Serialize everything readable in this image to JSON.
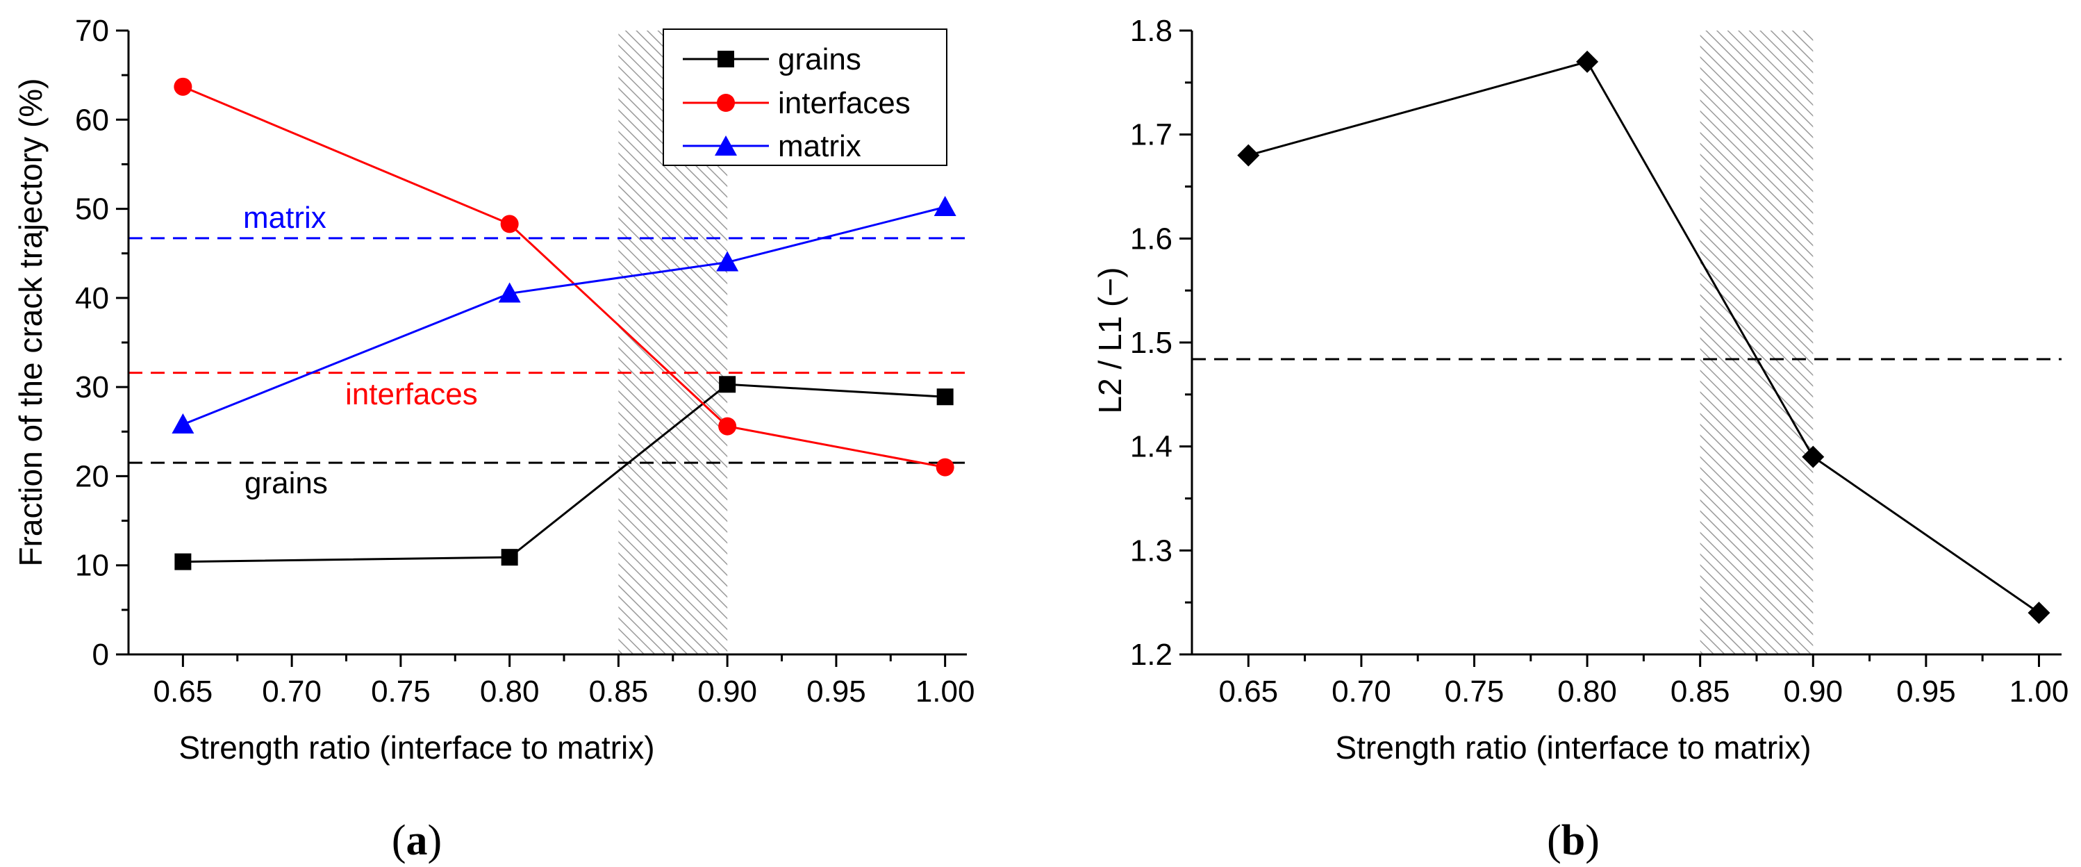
{
  "chart_data": [
    {
      "panel": "a",
      "type": "line",
      "xlabel": "Strength ratio (interface to matrix)",
      "ylabel": "Fraction of the crack trajectory (%)",
      "xlim": [
        0.625,
        1.01
      ],
      "ylim": [
        0,
        70
      ],
      "xticks": [
        "0.65",
        "0.70",
        "0.75",
        "0.80",
        "0.85",
        "0.90",
        "0.95",
        "1.00"
      ],
      "yticks": [
        "0",
        "10",
        "20",
        "30",
        "40",
        "50",
        "60",
        "70"
      ],
      "x": [
        0.65,
        0.8,
        0.9,
        1.0
      ],
      "series": [
        {
          "name": "grains",
          "color": "#000000",
          "marker": "square",
          "values": [
            10.4,
            10.9,
            30.3,
            28.9
          ]
        },
        {
          "name": "interfaces",
          "color": "#ff0000",
          "marker": "circle",
          "values": [
            63.7,
            48.3,
            25.6,
            21.0
          ]
        },
        {
          "name": "matrix",
          "color": "#0000ff",
          "marker": "triangle",
          "values": [
            25.8,
            40.5,
            44.0,
            50.2
          ]
        }
      ],
      "reference_lines": [
        {
          "label": "matrix",
          "value": 46.7,
          "color": "#0000ff"
        },
        {
          "label": "interfaces",
          "value": 31.6,
          "color": "#ff0000"
        },
        {
          "label": "grains",
          "value": 21.5,
          "color": "#000000"
        }
      ],
      "hatched_region": [
        0.85,
        0.9
      ],
      "legend_position": "top-right"
    },
    {
      "panel": "b",
      "type": "line",
      "xlabel": "Strength ratio (interface to matrix)",
      "ylabel": "L2 / L1 (−)",
      "xlim": [
        0.625,
        1.01
      ],
      "ylim": [
        1.2,
        1.8
      ],
      "xticks": [
        "0.65",
        "0.70",
        "0.75",
        "0.80",
        "0.85",
        "0.90",
        "0.95",
        "1.00"
      ],
      "yticks": [
        "1.2",
        "1.3",
        "1.4",
        "1.5",
        "1.6",
        "1.7",
        "1.8"
      ],
      "x": [
        0.65,
        0.8,
        0.9,
        1.0
      ],
      "series": [
        {
          "name": "L2/L1",
          "color": "#000000",
          "marker": "diamond",
          "values": [
            1.68,
            1.77,
            1.39,
            1.24
          ]
        }
      ],
      "reference_lines": [
        {
          "label": "",
          "value": 1.484,
          "color": "#000000"
        }
      ],
      "hatched_region": [
        0.85,
        0.9
      ]
    }
  ],
  "panel_labels": {
    "a": "a",
    "b": "b"
  }
}
